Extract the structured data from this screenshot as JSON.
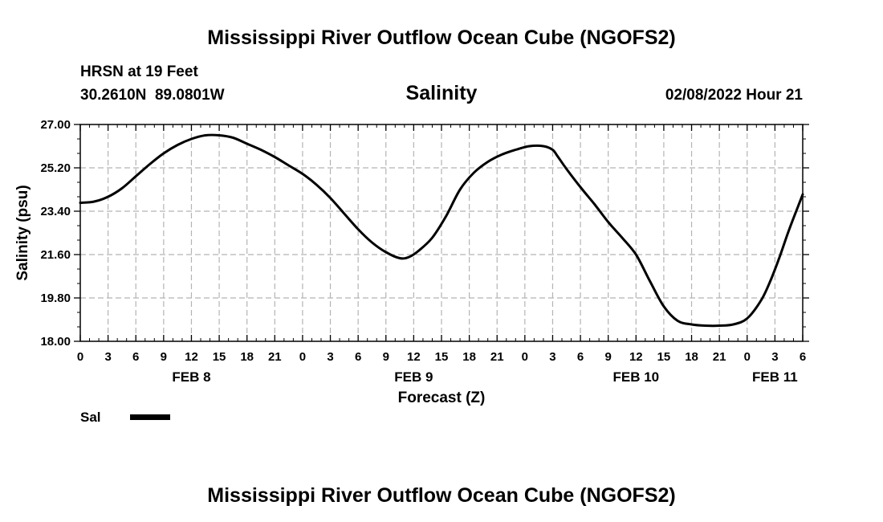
{
  "header": {
    "title": "Mississippi River Outflow Ocean Cube (NGOFS2)",
    "station": "HRSN at 19 Feet",
    "coords": "30.2610N  89.0801W",
    "variable": "Salinity",
    "datetime": "02/08/2022 Hour 21"
  },
  "footer": {
    "title": "Mississippi River Outflow Ocean Cube (NGOFS2)"
  },
  "legend": {
    "label": "Sal",
    "color": "#000000"
  },
  "chart_data": {
    "type": "line",
    "title": "Salinity",
    "xlabel": "Forecast (Z)",
    "ylabel": "Salinity (psu)",
    "xunit": "hours from 2022-02-08 00Z",
    "xlim": [
      0,
      78
    ],
    "ylim": [
      18.0,
      27.0
    ],
    "yticks": [
      "18.00",
      "19.80",
      "21.60",
      "23.40",
      "25.20",
      "27.00"
    ],
    "xtick_labels": [
      "0",
      "3",
      "6",
      "9",
      "12",
      "15",
      "18",
      "21",
      "0",
      "3",
      "6",
      "9",
      "12",
      "15",
      "18",
      "21",
      "0",
      "3",
      "6",
      "9",
      "12",
      "15",
      "18",
      "21",
      "0",
      "3",
      "6"
    ],
    "day_labels": [
      {
        "label": "FEB 8",
        "hour": 12
      },
      {
        "label": "FEB 9",
        "hour": 36
      },
      {
        "label": "FEB 10",
        "hour": 60
      },
      {
        "label": "FEB 11",
        "hour": 75
      }
    ],
    "grid": true,
    "series": [
      {
        "name": "Sal",
        "x": [
          0,
          1.5,
          3,
          4.5,
          6,
          7.5,
          9,
          10.5,
          12,
          13.5,
          15,
          16.5,
          18,
          19.5,
          21,
          22.5,
          24,
          25.5,
          27,
          28.5,
          30,
          31.5,
          33,
          34.5,
          35.5,
          36.5,
          38,
          39.5,
          41,
          42.5,
          44,
          45.5,
          47,
          48.5,
          50,
          51,
          51.5,
          52.5,
          54,
          55.5,
          57,
          58.5,
          60,
          61.5,
          63,
          64.5,
          66,
          67.5,
          69,
          70.5,
          72,
          73.5,
          74.5,
          75.5,
          76.5,
          77.5,
          78
        ],
        "y": [
          23.75,
          23.8,
          24.0,
          24.35,
          24.85,
          25.35,
          25.8,
          26.15,
          26.4,
          26.55,
          26.55,
          26.45,
          26.2,
          25.95,
          25.65,
          25.3,
          24.95,
          24.5,
          23.95,
          23.3,
          22.65,
          22.1,
          21.7,
          21.45,
          21.5,
          21.75,
          22.3,
          23.2,
          24.3,
          25.0,
          25.45,
          25.75,
          25.95,
          26.1,
          26.1,
          25.95,
          25.7,
          25.15,
          24.4,
          23.7,
          22.95,
          22.3,
          21.6,
          20.5,
          19.45,
          18.85,
          18.7,
          18.65,
          18.65,
          18.7,
          18.95,
          19.7,
          20.5,
          21.5,
          22.6,
          23.6,
          24.1
        ]
      }
    ]
  }
}
